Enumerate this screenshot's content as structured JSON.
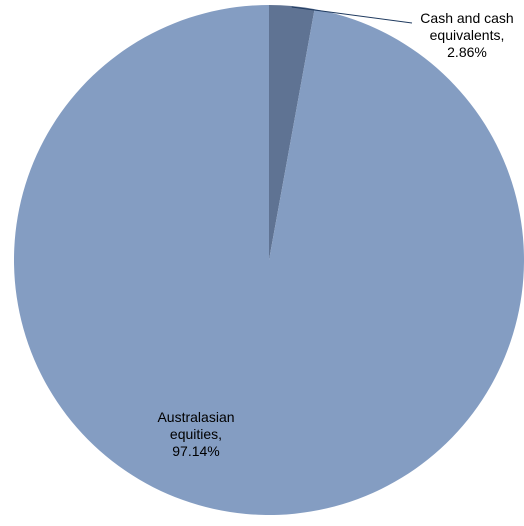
{
  "chart_data": {
    "type": "pie",
    "title": "",
    "start_angle_deg": 0,
    "direction": "clockwise",
    "slices": [
      {
        "label_lines": [
          "Cash and cash",
          "equivalents,",
          "2.86%"
        ],
        "value": 2.86,
        "color": "#5f7393",
        "label_position": "outside-top-right",
        "leader_line": true
      },
      {
        "label_lines": [
          "Australasian",
          "equities,",
          "97.14%"
        ],
        "value": 97.14,
        "color": "#849dc2",
        "label_position": "inside-lower-left",
        "leader_line": false
      }
    ],
    "legend": "none",
    "leader_line_color": "#1f3a5f"
  }
}
